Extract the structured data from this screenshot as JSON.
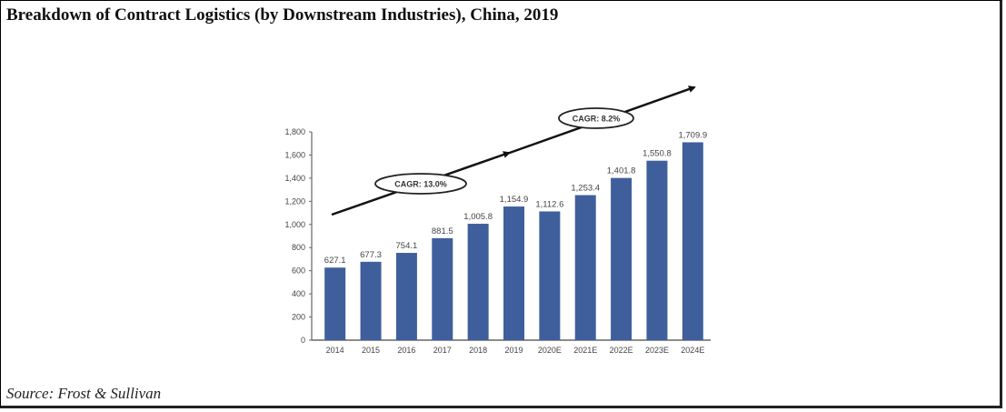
{
  "page": {
    "title": "Breakdown of Contract Logistics (by Downstream Industries), China, 2019",
    "source": "Source: Frost & Sullivan"
  },
  "chart_data": {
    "type": "bar",
    "title": "Breakdown of Contract Logistics (by Downstream Industries), China, 2019",
    "xlabel": "",
    "ylabel": "",
    "categories": [
      "2014",
      "2015",
      "2016",
      "2017",
      "2018",
      "2019",
      "2020E",
      "2021E",
      "2022E",
      "2023E",
      "2024E"
    ],
    "values": [
      627.1,
      677.3,
      754.1,
      881.5,
      1005.8,
      1154.9,
      1112.6,
      1253.4,
      1401.8,
      1550.8,
      1709.9
    ],
    "data_labels": [
      "627.1",
      "677.3",
      "754.1",
      "881.5",
      "1,005.8",
      "1,154.9",
      "1,112.6",
      "1,253.4",
      "1,401.8",
      "1,550.8",
      "1,709.9"
    ],
    "ylim": [
      0,
      1800
    ],
    "yticks": [
      0,
      200,
      400,
      600,
      800,
      1000,
      1200,
      1400,
      1600,
      1800
    ],
    "ytick_labels": [
      "0",
      "200",
      "400",
      "600",
      "800",
      "1,000",
      "1,200",
      "1,400",
      "1,600",
      "1,800"
    ],
    "grid": false,
    "legend": "none",
    "bar_color": "#3f5f9c",
    "annotations": [
      {
        "text": "CAGR: 13.0%",
        "period": "2014-2019"
      },
      {
        "text": "CAGR: 8.2%",
        "period": "2019-2024E"
      }
    ]
  }
}
